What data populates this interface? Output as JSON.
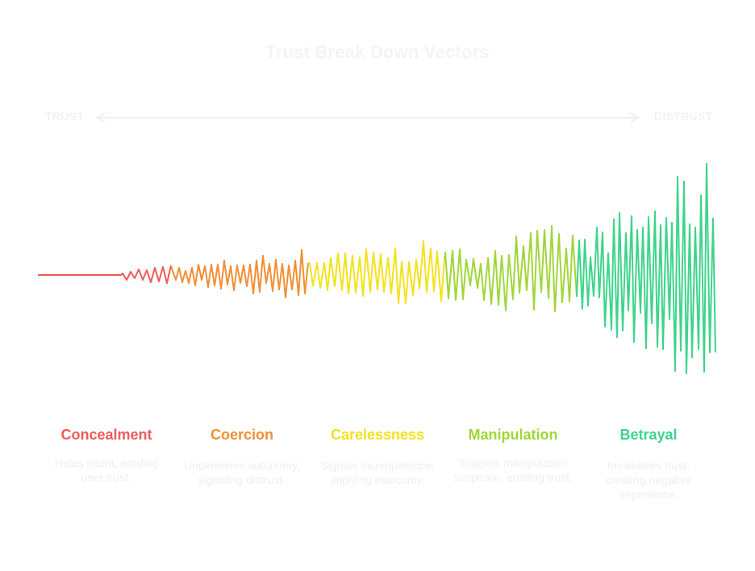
{
  "title": "Trust Break Down Vectors",
  "axis": {
    "left_label": "TRUST",
    "right_label": "DISTRUST"
  },
  "colors": {
    "concealment": "#ef5b5b",
    "coercion": "#f18f34",
    "carelessness": "#f5e11c",
    "manipulation": "#9fd738",
    "betrayal": "#3ed48a",
    "muted_text": "#efefef",
    "axis_line": "#f0f0f0"
  },
  "stages": [
    {
      "key": "concealment",
      "title": "Concealment",
      "description": "Hides intent, eroding user trust."
    },
    {
      "key": "coercion",
      "title": "Coercion",
      "description": "Undermines autonomy, signaling distrust."
    },
    {
      "key": "carelessness",
      "title": "Carelessness",
      "description": "Signals incompetence, implying insecurity."
    },
    {
      "key": "manipulation",
      "title": "Manipulation",
      "description": "Triggers manipulation suspicion, eroding trust."
    },
    {
      "key": "betrayal",
      "title": "Betrayal",
      "description": "Invalidates trust, creating negative experience."
    }
  ]
}
